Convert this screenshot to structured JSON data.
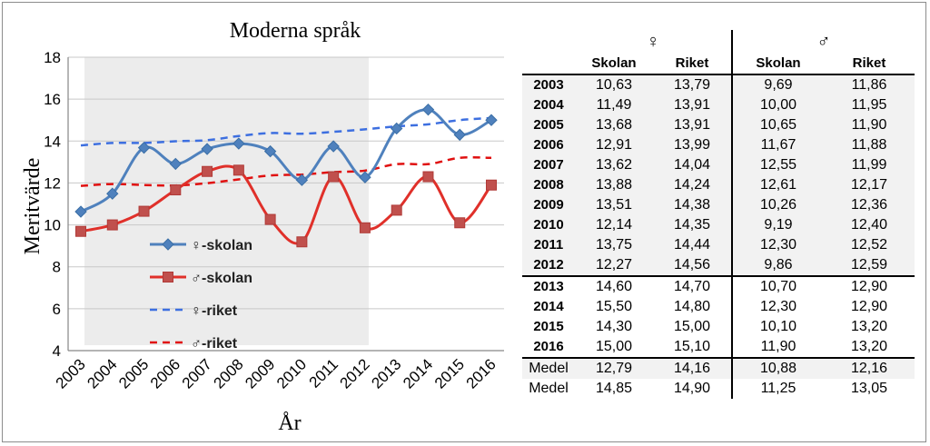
{
  "chart_data": {
    "type": "line",
    "title": "Moderna språk",
    "xlabel": "År",
    "ylabel": "Meritvärde",
    "ylim": [
      4,
      18
    ],
    "yticks": [
      4,
      6,
      8,
      10,
      12,
      14,
      16,
      18
    ],
    "grid": true,
    "shaded_x_range": [
      "2003",
      "2012"
    ],
    "legend_placement": "lower-left inside",
    "categories": [
      "2003",
      "2004",
      "2005",
      "2006",
      "2007",
      "2008",
      "2009",
      "2010",
      "2011",
      "2012",
      "2013",
      "2014",
      "2015",
      "2016"
    ],
    "series": [
      {
        "name": "♀-skolan",
        "style": "solid-diamond",
        "color": "#4f81bd",
        "values": [
          10.63,
          11.49,
          13.68,
          12.91,
          13.62,
          13.88,
          13.51,
          12.14,
          13.75,
          12.27,
          14.6,
          15.5,
          14.3,
          15.0
        ]
      },
      {
        "name": "♂-skolan",
        "style": "solid-square",
        "color": "#e0302a",
        "values": [
          9.69,
          10.0,
          10.65,
          11.67,
          12.55,
          12.61,
          10.26,
          9.19,
          12.3,
          9.86,
          10.7,
          12.3,
          10.1,
          11.9
        ]
      },
      {
        "name": "♀-riket",
        "style": "dashed",
        "color": "#3d6fe0",
        "values": [
          13.79,
          13.91,
          13.91,
          13.99,
          14.04,
          14.24,
          14.38,
          14.35,
          14.44,
          14.56,
          14.7,
          14.8,
          15.0,
          15.1
        ]
      },
      {
        "name": "♂-riket",
        "style": "dashed",
        "color": "#e01010",
        "values": [
          11.86,
          11.95,
          11.9,
          11.88,
          11.99,
          12.17,
          12.36,
          12.4,
          12.52,
          12.59,
          12.9,
          12.9,
          13.2,
          13.2
        ]
      }
    ]
  },
  "table": {
    "female_symbol": "♀",
    "male_symbol": "♂",
    "headers": [
      "Skolan",
      "Riket",
      "Skolan",
      "Riket"
    ],
    "rows": [
      {
        "year": "2003",
        "fs": "10,63",
        "fr": "13,79",
        "ms": "9,69",
        "mr": "11,86"
      },
      {
        "year": "2004",
        "fs": "11,49",
        "fr": "13,91",
        "ms": "10,00",
        "mr": "11,95"
      },
      {
        "year": "2005",
        "fs": "13,68",
        "fr": "13,91",
        "ms": "10,65",
        "mr": "11,90"
      },
      {
        "year": "2006",
        "fs": "12,91",
        "fr": "13,99",
        "ms": "11,67",
        "mr": "11,88"
      },
      {
        "year": "2007",
        "fs": "13,62",
        "fr": "14,04",
        "ms": "12,55",
        "mr": "11,99"
      },
      {
        "year": "2008",
        "fs": "13,88",
        "fr": "14,24",
        "ms": "12,61",
        "mr": "12,17"
      },
      {
        "year": "2009",
        "fs": "13,51",
        "fr": "14,38",
        "ms": "10,26",
        "mr": "12,36"
      },
      {
        "year": "2010",
        "fs": "12,14",
        "fr": "14,35",
        "ms": "9,19",
        "mr": "12,40"
      },
      {
        "year": "2011",
        "fs": "13,75",
        "fr": "14,44",
        "ms": "12,30",
        "mr": "12,52"
      },
      {
        "year": "2012",
        "fs": "12,27",
        "fr": "14,56",
        "ms": "9,86",
        "mr": "12,59"
      },
      {
        "year": "2013",
        "fs": "14,60",
        "fr": "14,70",
        "ms": "10,70",
        "mr": "12,90"
      },
      {
        "year": "2014",
        "fs": "15,50",
        "fr": "14,80",
        "ms": "12,30",
        "mr": "12,90"
      },
      {
        "year": "2015",
        "fs": "14,30",
        "fr": "15,00",
        "ms": "10,10",
        "mr": "13,20"
      },
      {
        "year": "2016",
        "fs": "15,00",
        "fr": "15,10",
        "ms": "11,90",
        "mr": "13,20"
      }
    ],
    "medel": [
      {
        "label": "Medel",
        "fs": "12,79",
        "fr": "14,16",
        "ms": "10,88",
        "mr": "12,16"
      },
      {
        "label": "Medel",
        "fs": "14,85",
        "fr": "14,90",
        "ms": "11,25",
        "mr": "13,05"
      }
    ]
  }
}
